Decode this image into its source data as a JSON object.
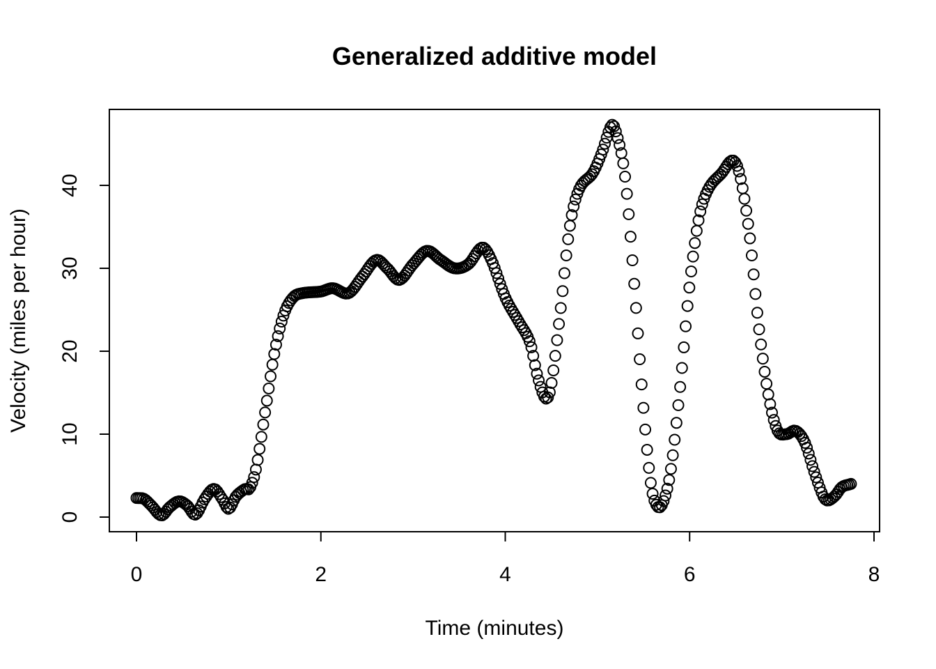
{
  "chart_data": {
    "type": "scatter",
    "title": "Generalized additive model",
    "xlabel": "Time (minutes)",
    "ylabel": "Velocity (miles per hour)",
    "xlim": [
      0,
      8
    ],
    "ylim": [
      0,
      45
    ],
    "xticks": [
      0,
      2,
      4,
      6,
      8
    ],
    "yticks": [
      0,
      10,
      20,
      30,
      40
    ],
    "marker": "open-circle",
    "grid": false,
    "legend": "none",
    "curve_knots": [
      [
        0.0,
        2.3
      ],
      [
        0.08,
        2.2
      ],
      [
        0.16,
        1.4
      ],
      [
        0.27,
        0.2
      ],
      [
        0.36,
        1.2
      ],
      [
        0.46,
        1.9
      ],
      [
        0.55,
        1.4
      ],
      [
        0.64,
        0.3
      ],
      [
        0.74,
        2.2
      ],
      [
        0.84,
        3.4
      ],
      [
        0.93,
        2.2
      ],
      [
        1.0,
        1.0
      ],
      [
        1.08,
        2.5
      ],
      [
        1.18,
        3.4
      ],
      [
        1.23,
        3.5
      ],
      [
        1.3,
        6.0
      ],
      [
        1.4,
        13.0
      ],
      [
        1.5,
        20.0
      ],
      [
        1.6,
        24.5
      ],
      [
        1.7,
        26.5
      ],
      [
        1.8,
        27.0
      ],
      [
        2.0,
        27.2
      ],
      [
        2.13,
        27.6
      ],
      [
        2.3,
        27.0
      ],
      [
        2.45,
        29.0
      ],
      [
        2.6,
        31.0
      ],
      [
        2.72,
        30.0
      ],
      [
        2.85,
        28.6
      ],
      [
        3.0,
        30.5
      ],
      [
        3.15,
        32.1
      ],
      [
        3.3,
        31.0
      ],
      [
        3.45,
        30.0
      ],
      [
        3.6,
        30.5
      ],
      [
        3.75,
        32.5
      ],
      [
        3.85,
        31.0
      ],
      [
        4.0,
        26.5
      ],
      [
        4.15,
        23.5
      ],
      [
        4.27,
        21.0
      ],
      [
        4.35,
        17.0
      ],
      [
        4.44,
        14.3
      ],
      [
        4.5,
        16.0
      ],
      [
        4.6,
        25.0
      ],
      [
        4.7,
        35.0
      ],
      [
        4.8,
        39.5
      ],
      [
        4.95,
        41.5
      ],
      [
        5.05,
        44.0
      ],
      [
        5.15,
        47.2
      ],
      [
        5.2,
        46.5
      ],
      [
        5.3,
        41.0
      ],
      [
        5.4,
        28.0
      ],
      [
        5.5,
        13.0
      ],
      [
        5.58,
        4.0
      ],
      [
        5.65,
        1.3
      ],
      [
        5.72,
        2.0
      ],
      [
        5.8,
        6.0
      ],
      [
        5.9,
        16.0
      ],
      [
        6.0,
        28.0
      ],
      [
        6.1,
        36.0
      ],
      [
        6.2,
        39.5
      ],
      [
        6.35,
        41.5
      ],
      [
        6.47,
        43.0
      ],
      [
        6.55,
        41.0
      ],
      [
        6.65,
        34.0
      ],
      [
        6.75,
        23.0
      ],
      [
        6.85,
        15.0
      ],
      [
        6.95,
        10.5
      ],
      [
        7.05,
        10.0
      ],
      [
        7.15,
        10.4
      ],
      [
        7.25,
        9.0
      ],
      [
        7.35,
        5.5
      ],
      [
        7.45,
        2.5
      ],
      [
        7.5,
        2.0
      ],
      [
        7.58,
        2.6
      ],
      [
        7.65,
        3.6
      ],
      [
        7.75,
        4.0
      ]
    ],
    "n_points": 390
  }
}
